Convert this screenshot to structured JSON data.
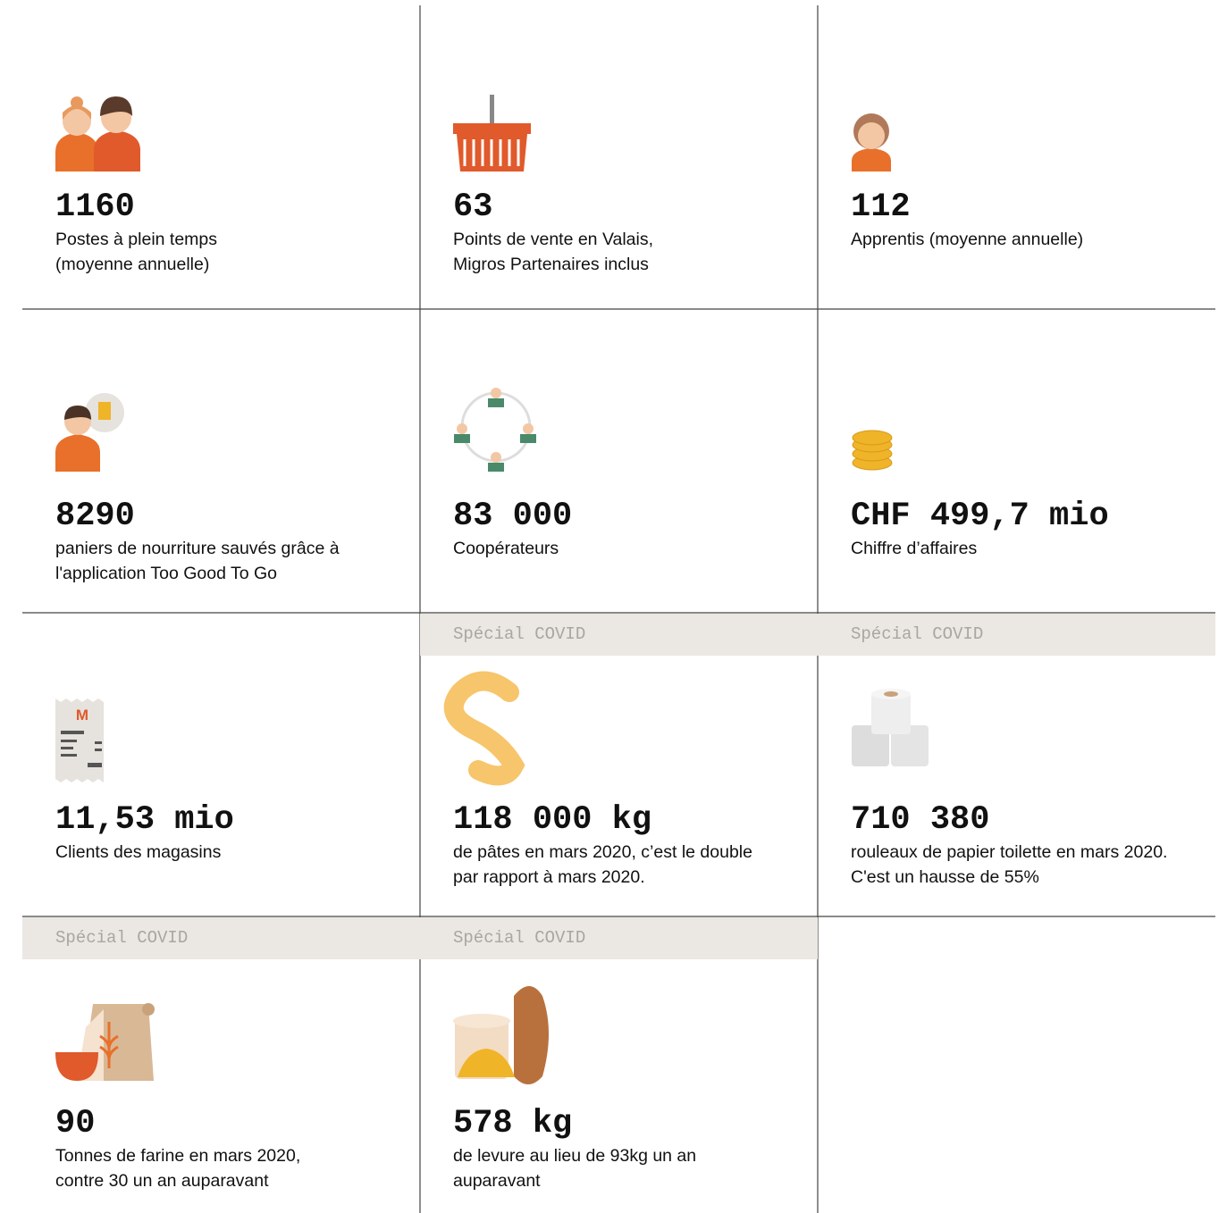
{
  "cells": [
    {
      "value": "1160",
      "description": [
        "Postes à plein temps",
        "(moyenne annuelle)"
      ]
    },
    {
      "value": "63",
      "description": [
        "Points de vente en Valais,",
        "Migros Partenaires inclus"
      ]
    },
    {
      "value": "112",
      "description": [
        "Apprentis (moyenne annuelle)"
      ]
    },
    {
      "value": "8290",
      "description": [
        "paniers de nourriture sauvés grâce à",
        "l'application Too Good To Go"
      ]
    },
    {
      "value": "83 000",
      "description": [
        "Coopérateurs"
      ]
    },
    {
      "value": "CHF 499,7 mio",
      "description": [
        "Chiffre d’affaires"
      ]
    },
    {
      "value": "11,53 mio",
      "description": [
        "Clients des magasins"
      ]
    },
    {
      "tag": "Spécial COVID",
      "value": "118 000 kg",
      "description": [
        "de pâtes en mars 2020, c’est le double",
        "par rapport à mars 2020."
      ]
    },
    {
      "tag": "Spécial COVID",
      "value": "710 380",
      "description": [
        "rouleaux de papier toilette en mars 2020.",
        "C'est un hausse de 55%"
      ]
    },
    {
      "tag": "Spécial COVID",
      "value": "90",
      "description": [
        "Tonnes de farine en mars 2020,",
        "contre 30 un an auparavant"
      ]
    },
    {
      "tag": "Spécial COVID",
      "value": "578 kg",
      "description": [
        "de levure au lieu de 93kg un an",
        "auparavant"
      ]
    }
  ]
}
